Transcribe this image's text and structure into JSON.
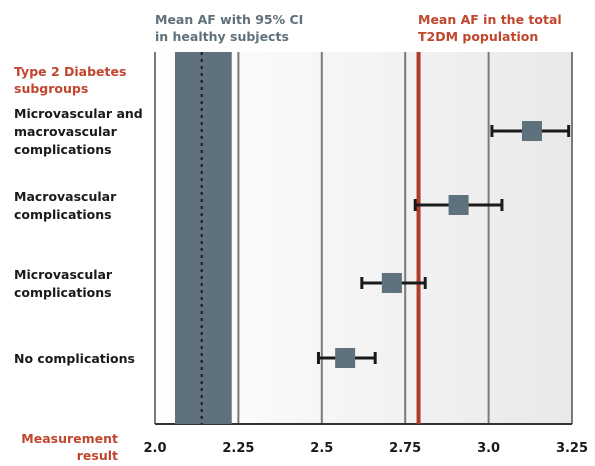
{
  "chart_data": {
    "type": "forest",
    "title": "",
    "xlabel": "Measurement result",
    "xlim": [
      2.0,
      3.25
    ],
    "xticks": [
      {
        "value": 2.0,
        "label": "2.0"
      },
      {
        "value": 2.25,
        "label": "2.25"
      },
      {
        "value": 2.5,
        "label": "2.5"
      },
      {
        "value": 2.75,
        "label": "2.75"
      },
      {
        "value": 3.0,
        "label": "3.0"
      },
      {
        "value": 3.25,
        "label": "3.25"
      }
    ],
    "group_header": "Type 2 Diabetes subgroups",
    "group_header_lines": [
      "Type 2 Diabetes",
      "subgroups"
    ],
    "xlabel_lines": [
      "Measurement",
      "result"
    ],
    "healthy_reference": {
      "label": "Mean AF with 95% CI in healthy subjects",
      "label_lines": [
        "Mean AF with 95% CI",
        "in healthy subjects"
      ],
      "mean": 2.14,
      "ci_low": 2.06,
      "ci_high": 2.23
    },
    "population_reference": {
      "label": "Mean AF in the total T2DM population",
      "label_lines": [
        "Mean AF in the total",
        "T2DM population"
      ],
      "value": 2.79
    },
    "series": [
      {
        "name": "Microvascular and macrovascular complications",
        "label_lines": [
          "Microvascular and",
          "macrovascular",
          "complications"
        ],
        "mean": 3.13,
        "ci_low": 3.01,
        "ci_high": 3.24
      },
      {
        "name": "Macrovascular complications",
        "label_lines": [
          "Macrovascular",
          "complications"
        ],
        "mean": 2.91,
        "ci_low": 2.78,
        "ci_high": 3.04
      },
      {
        "name": "Microvascular complications",
        "label_lines": [
          "Microvascular",
          "complications"
        ],
        "mean": 2.71,
        "ci_low": 2.62,
        "ci_high": 2.81
      },
      {
        "name": "No complications",
        "label_lines": [
          "No complications"
        ],
        "mean": 2.57,
        "ci_low": 2.49,
        "ci_high": 2.66
      }
    ],
    "grid": true,
    "colors": {
      "band": "#5f717c",
      "marker": "#5f717c",
      "red_line": "#b23a2a",
      "accent_text": "#c0462e",
      "grid": "#7a7a7a",
      "text": "#1a1a1a"
    }
  }
}
